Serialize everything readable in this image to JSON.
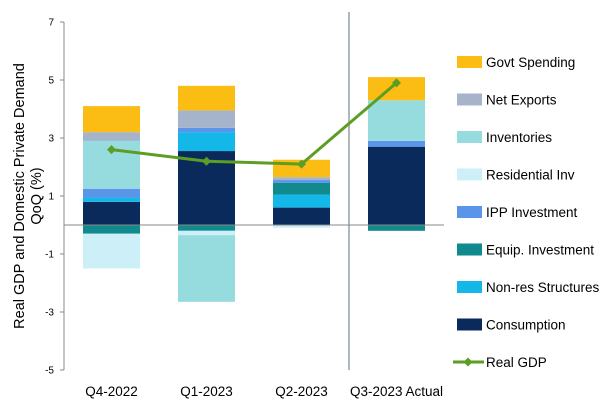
{
  "chart_data": {
    "type": "bar",
    "stacked": true,
    "ylabel": "Real GDP and Domestic Private Demand QoQ (%)",
    "ylabel_lines": [
      "Real GDP and Domestic Private Demand",
      "QoQ (%)"
    ],
    "ylim": [
      -5,
      7
    ],
    "yticks": [
      "7",
      "5",
      "3",
      "1",
      "-1",
      "-3",
      "-5"
    ],
    "ytick_values": [
      7,
      5,
      3,
      1,
      -1,
      -3,
      -5
    ],
    "grid": false,
    "legend_position": "right",
    "categories": [
      "Q4-2022",
      "Q1-2023",
      "Q2-2023",
      "Q3-2023 Actual"
    ],
    "series": [
      {
        "name": "Consumption",
        "color": "#0b2a5c",
        "values": [
          0.8,
          2.55,
          0.6,
          2.7
        ]
      },
      {
        "name": "Non-res Structures",
        "color": "#13b7e8",
        "values": [
          0.15,
          0.65,
          0.45,
          0.0
        ]
      },
      {
        "name": "Equip. Investment",
        "color": "#118a8e",
        "values": [
          -0.3,
          -0.2,
          0.4,
          -0.2
        ]
      },
      {
        "name": "IPP Investment",
        "color": "#5b95ea",
        "values": [
          0.3,
          0.15,
          0.1,
          0.2
        ]
      },
      {
        "name": "Residential Inv",
        "color": "#cdeff7",
        "values": [
          -1.2,
          -0.15,
          -0.1,
          0.0
        ]
      },
      {
        "name": "Inventories",
        "color": "#96dcdf",
        "values": [
          1.65,
          -2.3,
          0.0,
          1.4
        ]
      },
      {
        "name": "Net Exports",
        "color": "#a5b4cb",
        "values": [
          0.3,
          0.6,
          0.1,
          0.0
        ]
      },
      {
        "name": "Govt Spending",
        "color": "#fbbd14",
        "values": [
          0.9,
          0.85,
          0.6,
          0.8
        ]
      }
    ],
    "line": {
      "name": "Real GDP",
      "color": "#5c9e23",
      "values": [
        2.6,
        2.2,
        2.1,
        4.9
      ]
    },
    "divider_after_category": 2
  }
}
